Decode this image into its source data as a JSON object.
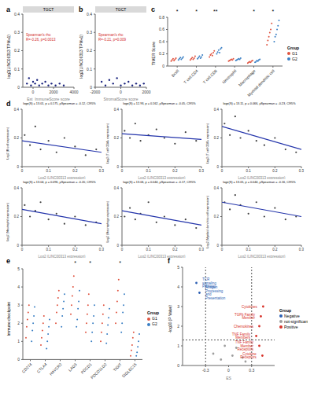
{
  "chart_data": [
    {
      "type": "scatter",
      "panel_label": "a",
      "title": "TGCT",
      "x_label": "Est_ImmuneScore score",
      "y_label": "log2(LINC00313 TPM+1)",
      "annotations": [
        "Spearman's rho",
        "R=-0.26, p=0.0013"
      ],
      "color": "#1a237e",
      "x": [
        -600,
        -400,
        -200,
        0,
        200,
        400,
        600,
        900,
        1200,
        1500,
        1800,
        2200,
        2600,
        3000
      ],
      "values": [
        0.02,
        0.05,
        0.01,
        0.03,
        0.02,
        0.04,
        0.01,
        0.02,
        0.03,
        0.01,
        0.02,
        0.01,
        0.02,
        0.01
      ],
      "xlim": [
        -1000,
        4000
      ],
      "xticks": [
        0,
        2000,
        4000
      ],
      "ylim": [
        0,
        0.4
      ],
      "yticks": [
        0,
        0.1,
        0.2,
        0.3,
        0.4
      ]
    },
    {
      "type": "scatter",
      "panel_label": "b",
      "title": "TGCT",
      "x_label": "StromalScore score",
      "y_label": "log2(LINC00313 TPM+1)",
      "annotations": [
        "Spearman's rho",
        "R=-0.21, p=0.009"
      ],
      "color": "#1a237e",
      "x": [
        -1500,
        -1200,
        -900,
        -600,
        -300,
        0,
        300,
        600,
        900,
        1200,
        1500,
        1800
      ],
      "values": [
        0.03,
        0.01,
        0.04,
        0.02,
        0.05,
        0.01,
        0.02,
        0.03,
        0.01,
        0.02,
        0.01,
        0.02
      ],
      "xlim": [
        -2000,
        2000
      ],
      "xticks": [
        -2000,
        0,
        2000
      ],
      "ylim": [
        0,
        0.4
      ],
      "yticks": [
        0,
        0.1,
        0.2,
        0.3,
        0.4
      ]
    },
    {
      "type": "strip",
      "panel_label": "c",
      "y_label": "TIMER Score",
      "legend": "right",
      "legend_title": "Group",
      "categories": [
        "Bcell",
        "T cell.CD4",
        "T cell.CD8",
        "Neutrophil",
        "Macrophage",
        "Myeloid dendritic cell"
      ],
      "significance": [
        "*",
        "*",
        "**",
        null,
        "*",
        "*"
      ],
      "series": [
        {
          "name": "G1",
          "color": "#e0533f",
          "values": [
            [
              0.08,
              0.1,
              0.12,
              0.09,
              0.11,
              0.13
            ],
            [
              0.1,
              0.12,
              0.14,
              0.11,
              0.13,
              0.16
            ],
            [
              0.15,
              0.18,
              0.2,
              0.17,
              0.22,
              0.25
            ],
            [
              0.08,
              0.09,
              0.1,
              0.11,
              0.1,
              0.12
            ],
            [
              0.05,
              0.06,
              0.07,
              0.06,
              0.08,
              0.09
            ],
            [
              0.35,
              0.42,
              0.48,
              0.55,
              0.6,
              0.7
            ]
          ]
        },
        {
          "name": "G2",
          "color": "#3a7fc4",
          "values": [
            [
              0.1,
              0.12,
              0.14,
              0.11,
              0.13,
              0.15
            ],
            [
              0.12,
              0.14,
              0.16,
              0.13,
              0.15,
              0.18
            ],
            [
              0.2,
              0.23,
              0.26,
              0.22,
              0.28,
              0.3
            ],
            [
              0.09,
              0.1,
              0.11,
              0.12,
              0.11,
              0.13
            ],
            [
              0.06,
              0.07,
              0.09,
              0.08,
              0.1,
              0.11
            ],
            [
              0.4,
              0.48,
              0.52,
              0.6,
              0.66,
              0.75
            ]
          ]
        }
      ],
      "ylim": [
        0,
        0.8
      ],
      "yticks": [
        0,
        0.2,
        0.4,
        0.6,
        0.8
      ]
    },
    {
      "type": "scatter",
      "panel_label": "d",
      "title": "loge(S) = 13.01, p = 0.175, ρSpearman = -0.12, CI95%",
      "x_label": "Log2 (LINC00313 expression)",
      "y_label": "Log2 (B cell expression)",
      "color": "#404040",
      "x": [
        0.01,
        0.03,
        0.05,
        0.07,
        0.1,
        0.13,
        0.16,
        0.2,
        0.24,
        0.28
      ],
      "values": [
        0.22,
        0.15,
        0.28,
        0.12,
        0.18,
        0.1,
        0.2,
        0.14,
        0.08,
        0.12
      ],
      "fit": {
        "x": [
          0,
          0.3
        ],
        "values": [
          0.18,
          0.1
        ],
        "color": "#2233aa"
      },
      "xlim": [
        0,
        0.3
      ],
      "xticks": [
        0,
        0.1,
        0.2,
        0.3
      ],
      "ylim": [
        0,
        0.4
      ],
      "yticks": [
        0,
        0.2,
        0.4
      ]
    },
    {
      "type": "scatter",
      "title": "loge(S) = 12.93, p = 0.162, ρSpearman = -0.05, CI95%",
      "x_label": "Log2 (LINC00313 expression)",
      "y_label": "Log2 (T cell CD4+ expression)",
      "color": "#404040",
      "x": [
        0.01,
        0.03,
        0.05,
        0.07,
        0.1,
        0.13,
        0.16,
        0.2,
        0.24,
        0.28
      ],
      "values": [
        0.25,
        0.2,
        0.3,
        0.18,
        0.22,
        0.26,
        0.2,
        0.16,
        0.24,
        0.18
      ],
      "fit": {
        "x": [
          0,
          0.3
        ],
        "values": [
          0.23,
          0.19
        ],
        "color": "#2233aa"
      },
      "xlim": [
        0,
        0.3
      ],
      "xticks": [
        0,
        0.1,
        0.2,
        0.3
      ],
      "ylim": [
        0,
        0.4
      ],
      "yticks": [
        0,
        0.2,
        0.4
      ]
    },
    {
      "type": "scatter",
      "title": "loge(S) = 13.11, p = 0.066, ρSpearman = -0.23, CI95%",
      "x_label": "Log2 (LINC00313 expression)",
      "y_label": "Log2 (T cell CD8+ expression)",
      "color": "#404040",
      "x": [
        0.01,
        0.03,
        0.05,
        0.07,
        0.1,
        0.13,
        0.16,
        0.2,
        0.24,
        0.28
      ],
      "values": [
        0.3,
        0.22,
        0.35,
        0.2,
        0.25,
        0.18,
        0.15,
        0.2,
        0.12,
        0.1
      ],
      "fit": {
        "x": [
          0,
          0.3
        ],
        "values": [
          0.28,
          0.12
        ],
        "color": "#2233aa"
      },
      "xlim": [
        0,
        0.3
      ],
      "xticks": [
        0,
        0.1,
        0.2,
        0.3
      ],
      "ylim": [
        0,
        0.4
      ],
      "yticks": [
        0,
        0.2,
        0.4
      ]
    },
    {
      "type": "scatter",
      "title": "loge(S) = 13.04, p = 0.096, ρSpearman = -0.20, CI95%",
      "x_label": "Log2 (LINC00313 expression)",
      "y_label": "Log2 (Neutrophil expression)",
      "color": "#404040",
      "x": [
        0.01,
        0.03,
        0.05,
        0.07,
        0.1,
        0.13,
        0.16,
        0.2,
        0.24,
        0.28
      ],
      "values": [
        0.28,
        0.2,
        0.24,
        0.3,
        0.18,
        0.22,
        0.15,
        0.2,
        0.14,
        0.16
      ],
      "fit": {
        "x": [
          0,
          0.3
        ],
        "values": [
          0.25,
          0.15
        ],
        "color": "#2233aa"
      },
      "xlim": [
        0,
        0.3
      ],
      "xticks": [
        0,
        0.1,
        0.2,
        0.3
      ],
      "ylim": [
        0,
        0.4
      ],
      "yticks": [
        0,
        0.2,
        0.4
      ]
    },
    {
      "type": "scatter",
      "title": "loge(S) = 13.06, p = 0.044, ρSpearman = -0.17, CI95%",
      "x_label": "Log2 (LINC00313 expression)",
      "y_label": "Log2 (Macrophage expression)",
      "color": "#404040",
      "x": [
        0.01,
        0.03,
        0.05,
        0.07,
        0.1,
        0.13,
        0.16,
        0.2,
        0.24,
        0.28
      ],
      "values": [
        0.2,
        0.26,
        0.18,
        0.22,
        0.3,
        0.16,
        0.2,
        0.14,
        0.18,
        0.12
      ],
      "fit": {
        "x": [
          0,
          0.3
        ],
        "values": [
          0.24,
          0.14
        ],
        "color": "#2233aa"
      },
      "xlim": [
        0,
        0.3
      ],
      "xticks": [
        0,
        0.1,
        0.2,
        0.3
      ],
      "ylim": [
        0,
        0.4
      ],
      "yticks": [
        0,
        0.2,
        0.4
      ]
    },
    {
      "type": "scatter",
      "title": "loge(S) = 13.05, p = 0.044, ρSpearman = -0.16, CI95%",
      "x_label": "Log2 (LINC00313 expression)",
      "y_label": "Log2 (Myeloid dendritic cell expression)",
      "color": "#404040",
      "x": [
        0.01,
        0.03,
        0.05,
        0.07,
        0.1,
        0.13,
        0.16,
        0.2,
        0.24,
        0.28
      ],
      "values": [
        0.3,
        0.25,
        0.35,
        0.28,
        0.22,
        0.3,
        0.2,
        0.26,
        0.18,
        0.2
      ],
      "fit": {
        "x": [
          0,
          0.3
        ],
        "values": [
          0.3,
          0.2
        ],
        "color": "#2233aa"
      },
      "xlim": [
        0,
        0.3
      ],
      "xticks": [
        0,
        0.1,
        0.2,
        0.3
      ],
      "ylim": [
        0,
        0.4
      ],
      "yticks": [
        0,
        0.2,
        0.4
      ]
    },
    {
      "type": "strip",
      "panel_label": "e",
      "y_label": "Immune checkpoint",
      "legend": "right",
      "legend_title": "Group",
      "categories": [
        "CD274",
        "CTLA4",
        "HAVCR2",
        "LAG3",
        "PDCD1",
        "PDCD1LG2",
        "TIGIT",
        "SIGLEC15"
      ],
      "significance": [
        null,
        null,
        null,
        "*",
        "*",
        null,
        "*",
        null
      ],
      "series": [
        {
          "name": "G1",
          "color": "#e0533f",
          "values": [
            [
              1.2,
              1.8,
              2.2,
              2.6,
              3.0
            ],
            [
              0.8,
              1.2,
              1.6,
              2.0,
              2.4
            ],
            [
              2.0,
              2.6,
              3.0,
              3.4,
              3.8
            ],
            [
              2.5,
              3.0,
              3.5,
              4.0,
              4.6
            ],
            [
              1.5,
              2.0,
              2.5,
              3.0,
              3.6
            ],
            [
              1.0,
              1.5,
              2.0,
              2.5,
              3.0
            ],
            [
              2.0,
              2.6,
              3.2,
              3.8,
              4.4
            ],
            [
              0.2,
              0.5,
              0.8,
              1.2,
              1.5
            ]
          ]
        },
        {
          "name": "G2",
          "color": "#3a7fc4",
          "values": [
            [
              1.0,
              1.6,
              2.0,
              2.4,
              2.9
            ],
            [
              0.6,
              1.0,
              1.4,
              1.8,
              2.2
            ],
            [
              1.8,
              2.4,
              2.8,
              3.2,
              3.6
            ],
            [
              1.8,
              2.2,
              2.8,
              3.2,
              3.8
            ],
            [
              1.0,
              1.5,
              2.0,
              2.4,
              3.0
            ],
            [
              0.9,
              1.4,
              1.9,
              2.3,
              2.8
            ],
            [
              1.5,
              2.0,
              2.6,
              3.0,
              3.6
            ],
            [
              0.2,
              0.4,
              0.7,
              1.0,
              1.4
            ]
          ]
        }
      ],
      "ylim": [
        0,
        5
      ],
      "yticks": [
        0,
        1,
        2,
        3,
        4,
        5
      ]
    },
    {
      "type": "scatter",
      "panel_label": "f",
      "x_label": "ES",
      "y_label": "-log10 (P Value)",
      "legend": "right",
      "legend_title": "Group",
      "series": [
        {
          "name": "Negative",
          "color": "#2c5fb3",
          "x": [
            -0.42,
            -0.38
          ],
          "values": [
            4.2,
            3.7
          ],
          "point_labels": [
            "TCR signaling Pathway",
            "Antigen Processing and Presentation"
          ]
        },
        {
          "name": "not-significant",
          "color": "#9e9e9e",
          "x": [
            -0.2,
            -0.1,
            0.05,
            0.1,
            0.18,
            -0.05,
            0.22
          ],
          "values": [
            0.6,
            0.3,
            0.5,
            0.9,
            0.4,
            1.0,
            0.2
          ]
        },
        {
          "name": "Positive",
          "color": "#d73027",
          "x": [
            0.45,
            0.42,
            0.4,
            0.36,
            0.4,
            0.44
          ],
          "values": [
            3.0,
            2.5,
            2.0,
            1.5,
            1.0,
            0.5
          ],
          "point_labels": [
            "Cytokines",
            "TGFb Family Member",
            "Chemokines",
            "TNF Family Members",
            "TNF Family Member Receptors",
            "Cytokine Receptors"
          ]
        }
      ],
      "x_lines": [
        -0.3,
        0.3
      ],
      "y_lines": [
        1.3
      ],
      "xlim": [
        -0.6,
        0.6
      ],
      "xticks": [
        -0.3,
        0,
        0.3
      ],
      "ylim": [
        0,
        5
      ],
      "yticks": [
        0,
        1,
        2,
        3,
        4,
        5
      ]
    }
  ]
}
